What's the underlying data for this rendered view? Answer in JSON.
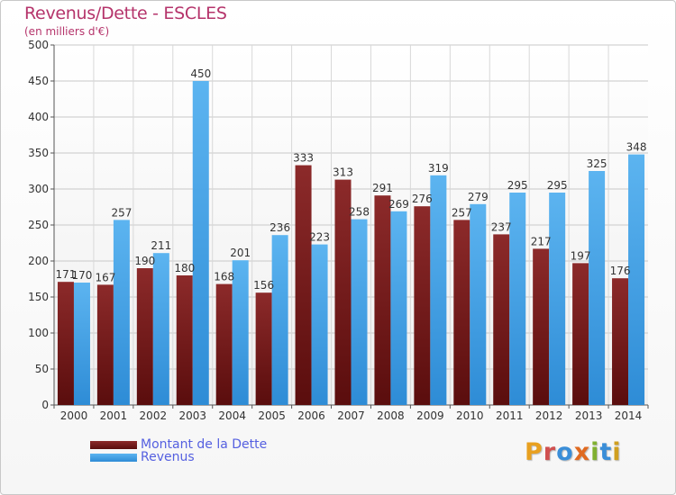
{
  "header": {
    "title": "Revenus/Dette - ESCLES",
    "subtitle": "(en milliers d'€)"
  },
  "legend": {
    "dette_label": "Montant de la Dette",
    "revenus_label": "Revenus"
  },
  "logo": {
    "text": "Proxiti"
  },
  "colors": {
    "dette": "#7a1f1f",
    "revenus": "#4aa8ea",
    "title": "#b5346b",
    "legend_text": "#5560e0"
  },
  "chart_data": {
    "type": "bar",
    "title": "Revenus/Dette - ESCLES",
    "subtitle": "(en milliers d'€)",
    "categories": [
      "2000",
      "2001",
      "2002",
      "2003",
      "2004",
      "2005",
      "2006",
      "2007",
      "2008",
      "2009",
      "2010",
      "2011",
      "2012",
      "2013",
      "2014"
    ],
    "series": [
      {
        "name": "Montant de la Dette",
        "values": [
          171,
          167,
          190,
          180,
          168,
          156,
          333,
          313,
          291,
          276,
          257,
          237,
          217,
          197,
          176
        ]
      },
      {
        "name": "Revenus",
        "values": [
          170,
          257,
          211,
          450,
          201,
          236,
          223,
          258,
          269,
          319,
          279,
          295,
          295,
          325,
          348
        ]
      }
    ],
    "yticks": [
      0,
      50,
      100,
      150,
      200,
      250,
      300,
      350,
      400,
      450,
      500
    ],
    "ylim": [
      0,
      500
    ],
    "grid": true,
    "legend_position": "bottom-left"
  }
}
